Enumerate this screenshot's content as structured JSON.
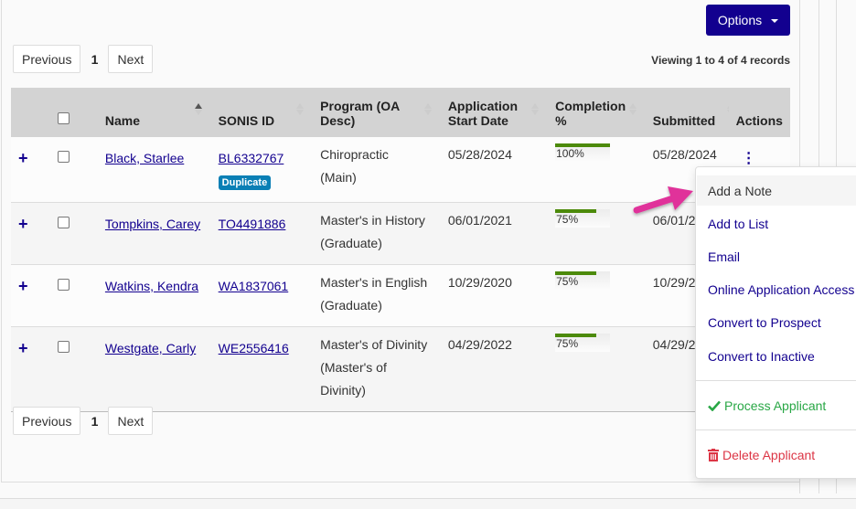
{
  "toolbar": {
    "options_label": "Options"
  },
  "pagination": {
    "previous_label": "Previous",
    "next_label": "Next",
    "current_page": "1",
    "viewing_text": "Viewing 1 to 4 of 4 records"
  },
  "table": {
    "columns": [
      {
        "key": "expand",
        "label": ""
      },
      {
        "key": "select",
        "label": ""
      },
      {
        "key": "name",
        "label": "Name",
        "sortable": true,
        "sorted": "asc"
      },
      {
        "key": "sonis_id",
        "label": "SONIS ID",
        "sortable": true
      },
      {
        "key": "program",
        "label": "Program (OA Desc)",
        "sortable": true
      },
      {
        "key": "start_date",
        "label": "Application Start Date",
        "sortable": true
      },
      {
        "key": "completion",
        "label": "Completion %",
        "sortable": true
      },
      {
        "key": "submitted",
        "label": "Submitted",
        "sortable": true
      },
      {
        "key": "actions",
        "label": "Actions"
      }
    ],
    "header": {
      "name": "Name",
      "sonis_id": "SONIS ID",
      "program_l1": "Program (OA",
      "program_l2": "Desc)",
      "start_l1": "Application",
      "start_l2": "Start Date",
      "completion_l1": "Completion",
      "completion_l2": "%",
      "submitted": "Submitted",
      "actions": "Actions"
    },
    "rows": [
      {
        "name": "Black, Starlee",
        "sonis_id": "BL6332767",
        "badge": "Duplicate",
        "program_l1": "Chiropractic",
        "program_l2": "(Main)",
        "program_l3": "",
        "start_date": "05/28/2024",
        "completion": "100%",
        "completion_value": 100,
        "submitted": "05/28/2024"
      },
      {
        "name": "Tompkins, Carey",
        "sonis_id": "TO4491886",
        "badge": "",
        "program_l1": "Master's in History",
        "program_l2": "(Graduate)",
        "program_l3": "",
        "start_date": "06/01/2021",
        "completion": "75%",
        "completion_value": 75,
        "submitted": "06/01/2"
      },
      {
        "name": "Watkins, Kendra",
        "sonis_id": "WA1837061",
        "badge": "",
        "program_l1": "Master's in English",
        "program_l2": "(Graduate)",
        "program_l3": "",
        "start_date": "10/29/2020",
        "completion": "75%",
        "completion_value": 75,
        "submitted": "10/29/2"
      },
      {
        "name": "Westgate, Carly",
        "sonis_id": "WE2556416",
        "badge": "",
        "program_l1": "Master's of Divinity",
        "program_l2": "(Master's of",
        "program_l3": "Divinity)",
        "start_date": "04/29/2022",
        "completion": "75%",
        "completion_value": 75,
        "submitted": "04/29/2"
      }
    ]
  },
  "actions_menu": {
    "items": [
      {
        "label": "Add a Note",
        "state": "hover"
      },
      {
        "label": "Add to List"
      },
      {
        "label": "Email"
      },
      {
        "label": "Online Application Access"
      },
      {
        "label": "Convert to Prospect"
      },
      {
        "label": "Convert to Inactive"
      }
    ],
    "process": {
      "label": "Process Applicant",
      "icon": "check-icon",
      "color": "#28a745"
    },
    "delete": {
      "label": "Delete Applicant",
      "icon": "trash-icon",
      "color": "#dc3545"
    }
  },
  "colors": {
    "brand": "#12008f",
    "progress": "#4c8a0a",
    "badge": "#0a7fb5",
    "annotation_arrow": "#e0309a"
  }
}
